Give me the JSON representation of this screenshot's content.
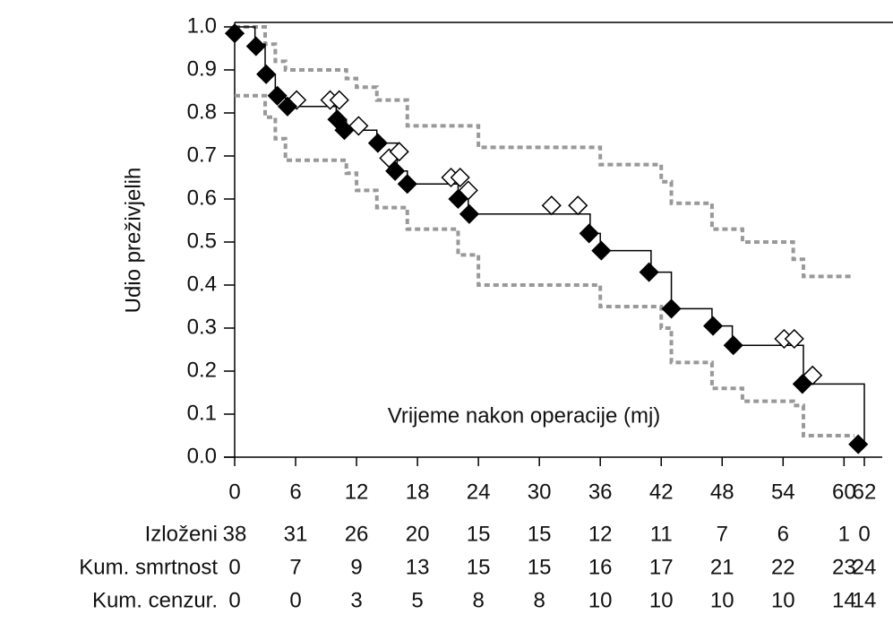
{
  "chart_data": {
    "type": "km",
    "y_label": "Udio preživjelih",
    "x_label": "Vrijeme nakon operacije (mj)",
    "xlim": [
      0,
      62
    ],
    "ylim": [
      0,
      1
    ],
    "xticks": [
      0,
      6,
      12,
      18,
      24,
      30,
      36,
      42,
      48,
      54,
      60,
      62
    ],
    "yticks": [
      {
        "value": 0,
        "label": "0.0"
      },
      0.1,
      0.2,
      0.3,
      0.4,
      0.5,
      0.6,
      0.7,
      0.8,
      0.9,
      {
        "value": 1,
        "label": "1.0"
      }
    ],
    "km_curve": {
      "color": "#000000",
      "x": [
        0,
        2,
        3,
        4,
        5,
        10,
        11,
        14,
        16,
        17,
        22,
        23,
        35,
        36,
        41,
        43,
        47,
        49,
        56,
        62
      ],
      "y": [
        1.0,
        0.96,
        0.89,
        0.84,
        0.815,
        0.785,
        0.76,
        0.73,
        0.665,
        0.635,
        0.6,
        0.565,
        0.52,
        0.48,
        0.43,
        0.345,
        0.305,
        0.26,
        0.17,
        0.03
      ]
    },
    "ci_upper": {
      "color": "#999999",
      "x": [
        0,
        3,
        4,
        5,
        10,
        11,
        12,
        14,
        17,
        22,
        24,
        35,
        36,
        42,
        43,
        47,
        50,
        55,
        56,
        61
      ],
      "y": [
        1.0,
        0.96,
        0.92,
        0.9,
        0.9,
        0.88,
        0.86,
        0.83,
        0.77,
        0.77,
        0.72,
        0.72,
        0.68,
        0.64,
        0.59,
        0.53,
        0.5,
        0.46,
        0.42,
        0.42
      ]
    },
    "ci_lower": {
      "color": "#999999",
      "x": [
        0,
        3,
        4,
        5,
        10,
        11,
        12,
        14,
        17,
        22,
        24,
        35,
        36,
        42,
        43,
        47,
        50,
        55,
        56,
        61
      ],
      "y": [
        0.84,
        0.79,
        0.74,
        0.69,
        0.69,
        0.66,
        0.62,
        0.58,
        0.53,
        0.47,
        0.4,
        0.4,
        0.35,
        0.3,
        0.22,
        0.16,
        0.13,
        0.12,
        0.05,
        0.05
      ]
    },
    "events": {
      "color": "#000000",
      "x": [
        0,
        2.1,
        3.1,
        4.2,
        5.2,
        10.1,
        10.8,
        14.1,
        15.8,
        17.0,
        22.0,
        23.1,
        34.9,
        36.1,
        40.8,
        43.0,
        47.1,
        49.1,
        55.9,
        61.4
      ],
      "y": [
        0.985,
        0.955,
        0.89,
        0.84,
        0.815,
        0.785,
        0.76,
        0.73,
        0.665,
        0.635,
        0.6,
        0.565,
        0.52,
        0.48,
        0.43,
        0.345,
        0.305,
        0.26,
        0.17,
        0.03
      ]
    },
    "censored": {
      "color": "#000000",
      "x": [
        6.1,
        9.4,
        10.3,
        12.2,
        15.2,
        16.2,
        21.3,
        22.2,
        23.0,
        31.2,
        33.8,
        54.1,
        55.1,
        56.9
      ],
      "y": [
        0.83,
        0.83,
        0.83,
        0.77,
        0.695,
        0.71,
        0.65,
        0.65,
        0.62,
        0.585,
        0.585,
        0.275,
        0.275,
        0.19
      ]
    },
    "risk_table": [
      {
        "label": "Izloženi",
        "values": [
          38,
          31,
          26,
          20,
          15,
          15,
          12,
          11,
          7,
          6,
          1,
          0
        ]
      },
      {
        "label": "Kum. smrtnost",
        "values": [
          0,
          7,
          9,
          13,
          15,
          15,
          16,
          17,
          21,
          22,
          23,
          24
        ]
      },
      {
        "label": "Kum. cenzur.",
        "values": [
          0,
          0,
          3,
          5,
          8,
          8,
          10,
          10,
          10,
          10,
          14,
          14
        ]
      }
    ]
  }
}
